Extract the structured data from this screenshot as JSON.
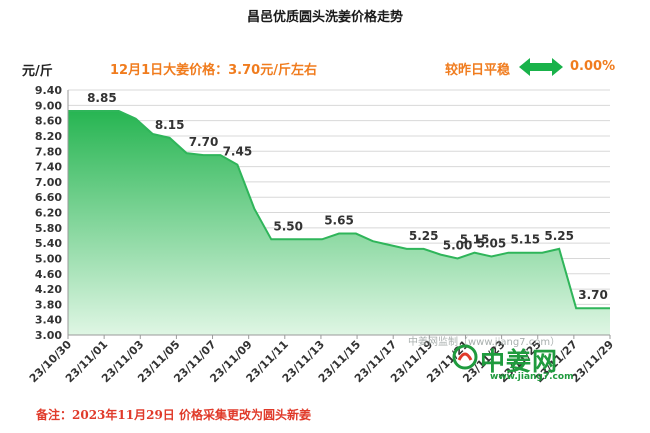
{
  "title": "昌邑优质圆头洗姜价格走势",
  "unit_label": "元/斤",
  "headline": "12月1日大姜价格：3.70元/斤左右",
  "compare": {
    "label": "较昨日平稳",
    "value": "0.00%",
    "arrow_color": "#19b24a"
  },
  "footnote": "备注：2023年11月29日 价格采集更改为圆头新姜",
  "watermark": {
    "source_text": "中姜网监制（www.jiang7.com）",
    "logo_text": "中姜网",
    "logo_url": "www.jiang7.com",
    "logo_color": "#1f9b3e"
  },
  "colors": {
    "line": "#2fb55a",
    "fill_top": "#27b552",
    "fill_bottom": "#dff6e4",
    "grid": "#d8d8d8",
    "axis": "#9a9a9a",
    "label": "#333333"
  },
  "chart_data": {
    "type": "area",
    "title": "昌邑优质圆头洗姜价格走势",
    "ylabel": "元/斤",
    "xlabel": "",
    "ylim": [
      3.0,
      9.4
    ],
    "yticks": [
      "3.00",
      "3.40",
      "3.80",
      "4.20",
      "4.60",
      "5.00",
      "5.40",
      "5.80",
      "6.20",
      "6.60",
      "7.00",
      "7.40",
      "7.80",
      "8.20",
      "8.60",
      "9.00",
      "9.40"
    ],
    "grid": true,
    "x_start": "2023-10-30",
    "x_end": "2023-12-01",
    "x_tick_labels": [
      "23/10/30",
      "23/11/01",
      "23/11/03",
      "23/11/05",
      "23/11/07",
      "23/11/09",
      "23/11/11",
      "23/11/13",
      "23/11/15",
      "23/11/17",
      "23/11/19",
      "23/11/21",
      "23/11/23",
      "23/11/25",
      "23/11/27",
      "23/11/29"
    ],
    "points": [
      {
        "x": "2023-10-30",
        "y": 8.85
      },
      {
        "x": "2023-11-02",
        "y": 8.85
      },
      {
        "x": "2023-11-03",
        "y": 8.65
      },
      {
        "x": "2023-11-04",
        "y": 8.25
      },
      {
        "x": "2023-11-05",
        "y": 8.15
      },
      {
        "x": "2023-11-06",
        "y": 7.75
      },
      {
        "x": "2023-11-07",
        "y": 7.7
      },
      {
        "x": "2023-11-08",
        "y": 7.7
      },
      {
        "x": "2023-11-09",
        "y": 7.45
      },
      {
        "x": "2023-11-10",
        "y": 6.3
      },
      {
        "x": "2023-11-11",
        "y": 5.5
      },
      {
        "x": "2023-11-14",
        "y": 5.5
      },
      {
        "x": "2023-11-15",
        "y": 5.65
      },
      {
        "x": "2023-11-16",
        "y": 5.65
      },
      {
        "x": "2023-11-17",
        "y": 5.45
      },
      {
        "x": "2023-11-19",
        "y": 5.25
      },
      {
        "x": "2023-11-20",
        "y": 5.25
      },
      {
        "x": "2023-11-21",
        "y": 5.1
      },
      {
        "x": "2023-11-22",
        "y": 5.0
      },
      {
        "x": "2023-11-23",
        "y": 5.15
      },
      {
        "x": "2023-11-24",
        "y": 5.05
      },
      {
        "x": "2023-11-25",
        "y": 5.15
      },
      {
        "x": "2023-11-27",
        "y": 5.15
      },
      {
        "x": "2023-11-28",
        "y": 5.25
      },
      {
        "x": "2023-11-29",
        "y": 3.7
      },
      {
        "x": "2023-12-01",
        "y": 3.7
      }
    ],
    "data_labels": [
      {
        "x": "2023-11-01",
        "y": 8.85,
        "text": "8.85"
      },
      {
        "x": "2023-11-05",
        "y": 8.15,
        "text": "8.15"
      },
      {
        "x": "2023-11-07",
        "y": 7.7,
        "text": "7.70"
      },
      {
        "x": "2023-11-09",
        "y": 7.45,
        "text": "7.45"
      },
      {
        "x": "2023-11-12",
        "y": 5.5,
        "text": "5.50"
      },
      {
        "x": "2023-11-15",
        "y": 5.65,
        "text": "5.65"
      },
      {
        "x": "2023-11-20",
        "y": 5.25,
        "text": "5.25"
      },
      {
        "x": "2023-11-22",
        "y": 5.0,
        "text": "5.00"
      },
      {
        "x": "2023-11-23",
        "y": 5.15,
        "text": "5.15"
      },
      {
        "x": "2023-11-24",
        "y": 5.05,
        "text": "5.05"
      },
      {
        "x": "2023-11-26",
        "y": 5.15,
        "text": "5.15"
      },
      {
        "x": "2023-11-28",
        "y": 5.25,
        "text": "5.25"
      },
      {
        "x": "2023-11-30",
        "y": 3.7,
        "text": "3.70"
      }
    ]
  }
}
